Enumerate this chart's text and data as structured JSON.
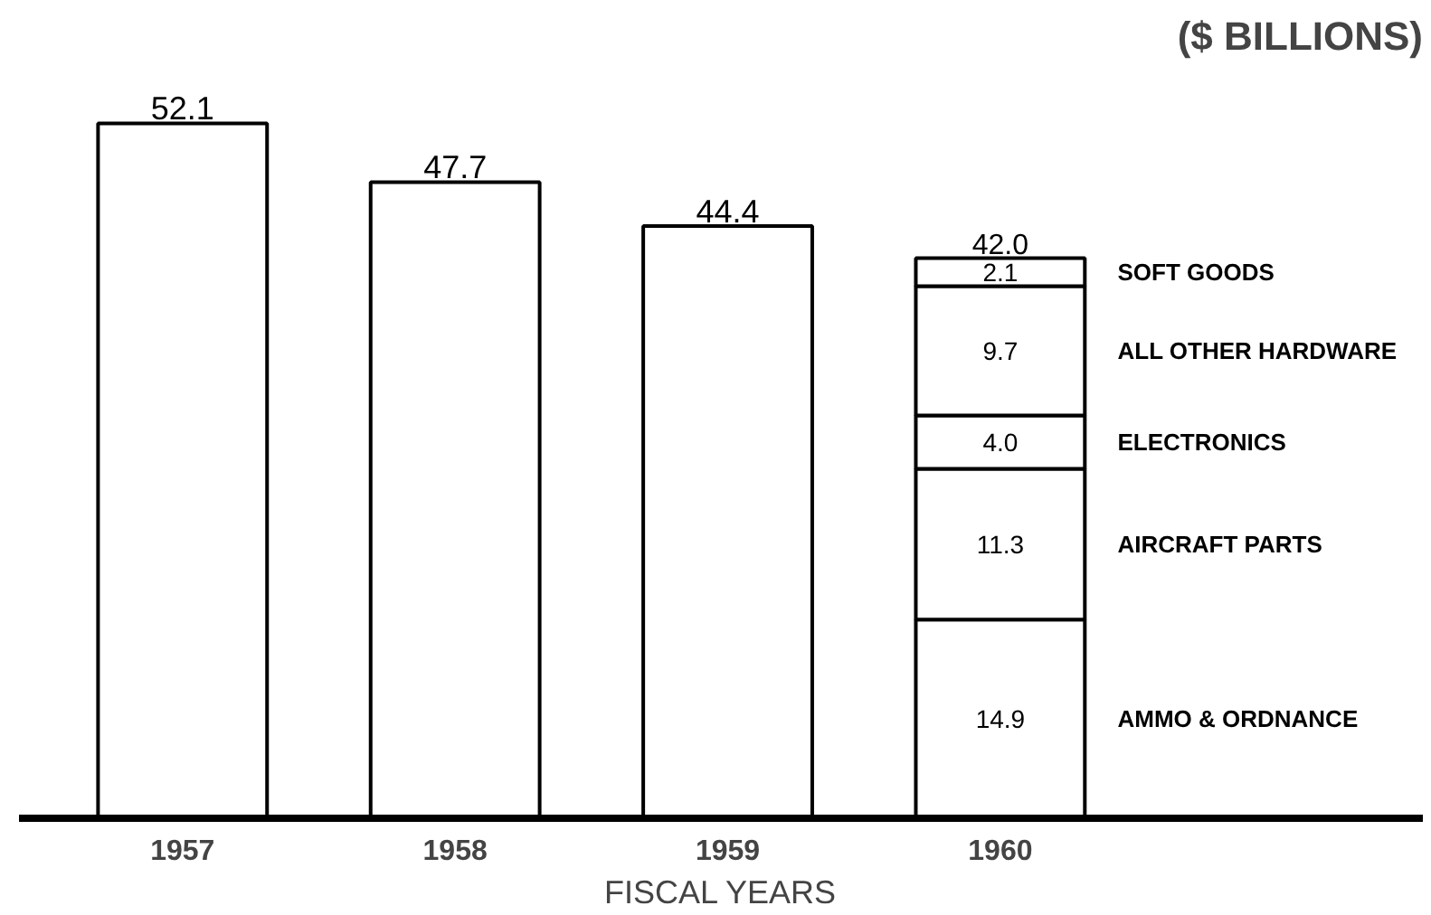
{
  "chart_data": {
    "type": "bar",
    "title": "($ BILLIONS)",
    "xlabel": "FISCAL YEARS",
    "categories": [
      "1957",
      "1958",
      "1959",
      "1960"
    ],
    "stacked": true,
    "totals": [
      null,
      null,
      null,
      "42.0"
    ],
    "legend": false,
    "series": [
      {
        "color": "#ffffff",
        "values": [
          52.1,
          47.7,
          44.4,
          null
        ],
        "value_labels": [
          "52.1",
          "47.7",
          "44.4",
          null
        ]
      },
      {
        "name": "AMMO & ORDNANCE",
        "color": "#ffffff",
        "values": [
          null,
          null,
          null,
          14.9
        ],
        "value_labels": [
          null,
          null,
          null,
          "14.9"
        ]
      },
      {
        "name": "AIRCRAFT PARTS",
        "color": "#ffffff",
        "values": [
          null,
          null,
          null,
          11.3
        ],
        "value_labels": [
          null,
          null,
          null,
          "11.3"
        ]
      },
      {
        "name": "ELECTRONICS",
        "color": "#ffffff",
        "values": [
          null,
          null,
          null,
          4.0
        ],
        "value_labels": [
          null,
          null,
          null,
          "4.0"
        ]
      },
      {
        "name": "ALL OTHER HARDWARE",
        "color": "#ffffff",
        "values": [
          null,
          null,
          null,
          9.7
        ],
        "value_labels": [
          null,
          null,
          null,
          "9.7"
        ]
      },
      {
        "name": "SOFT GOODS",
        "color": "#ffffff",
        "values": [
          null,
          null,
          null,
          2.1
        ],
        "value_labels": [
          null,
          null,
          null,
          "2.1"
        ]
      }
    ]
  }
}
